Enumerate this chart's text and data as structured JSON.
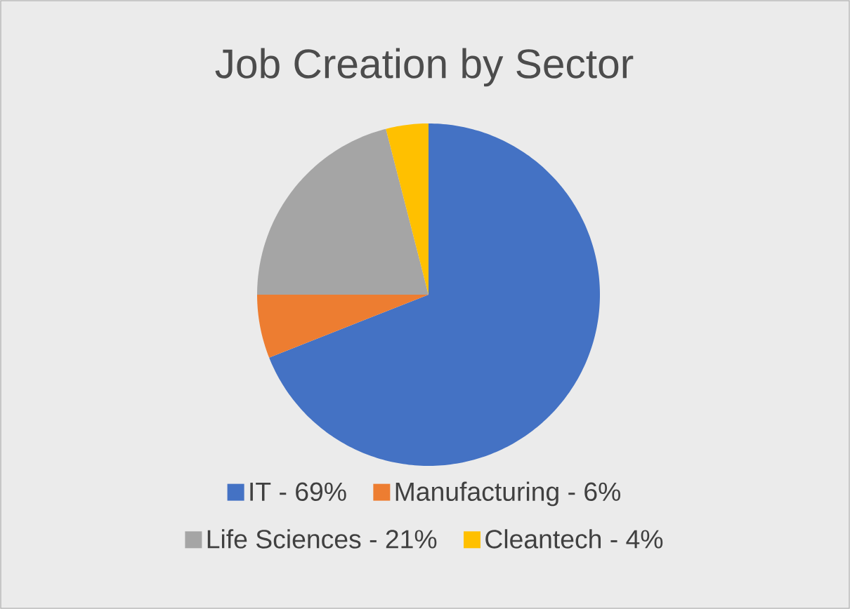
{
  "chart_data": {
    "type": "pie",
    "title": "Job Creation by Sector",
    "categories": [
      "IT - 69%",
      "Manufacturing - 6%",
      "Life Sciences - 21%",
      "Cleantech - 4%"
    ],
    "values": [
      69,
      6,
      21,
      4
    ],
    "colors": [
      "#4472c4",
      "#ed7d31",
      "#a5a5a5",
      "#ffc000"
    ],
    "legend": "bottom"
  }
}
